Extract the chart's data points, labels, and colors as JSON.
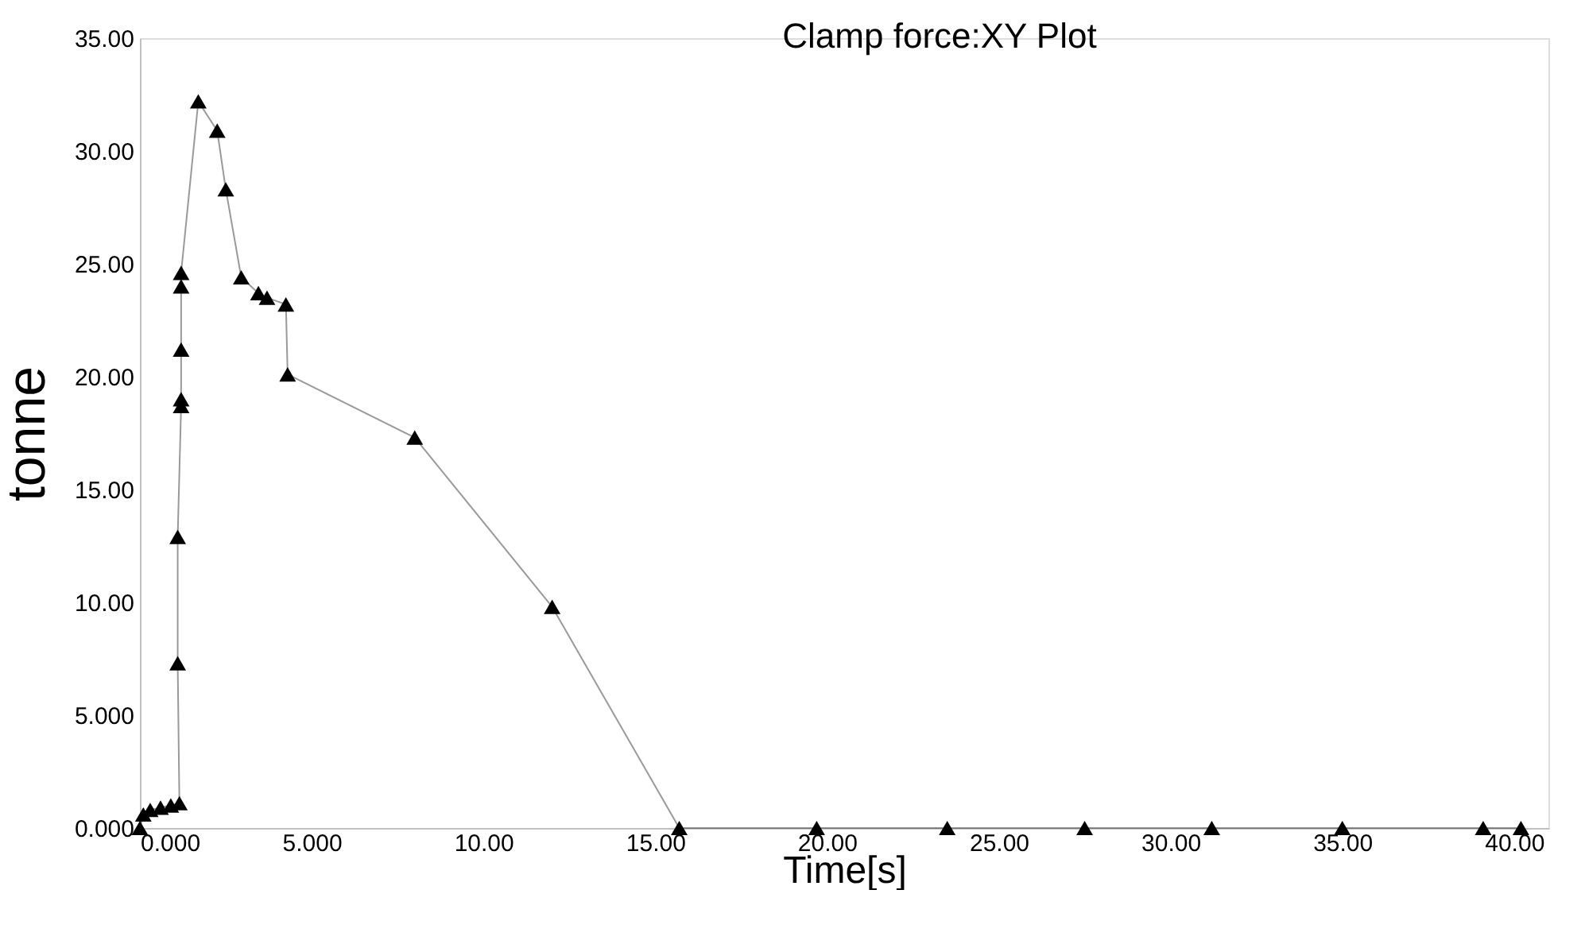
{
  "chart_data": {
    "type": "line",
    "title": "Clamp force:XY Plot",
    "xlabel": "Time[s]",
    "ylabel": "tonne",
    "series": [
      {
        "color": "#000000",
        "x": [
          0.0,
          0.1,
          0.3,
          0.6,
          0.9,
          1.15,
          1.1,
          1.1,
          1.2,
          1.2,
          1.2,
          1.2,
          1.2,
          1.7,
          2.25,
          2.5,
          2.95,
          3.45,
          3.7,
          4.25,
          4.3,
          8.0,
          12.0,
          15.7,
          19.7,
          23.5,
          27.5,
          31.2,
          35.0,
          39.1,
          40.2
        ],
        "values": [
          0.0,
          0.6,
          0.8,
          0.9,
          1.0,
          1.1,
          7.3,
          12.9,
          18.7,
          19.0,
          21.2,
          24.0,
          24.6,
          32.2,
          30.9,
          28.3,
          24.4,
          23.7,
          23.5,
          23.2,
          20.1,
          17.3,
          9.8,
          0.0,
          0.0,
          0.0,
          0.0,
          0.0,
          0.0,
          0.0,
          0.0
        ]
      }
    ],
    "marker": "triangle",
    "line_style": "solid",
    "grid": false,
    "xlim": [
      0,
      41
    ],
    "ylim": [
      0,
      35
    ],
    "xticks": [
      {
        "value": 0,
        "label": "0.000"
      },
      {
        "value": 5,
        "label": "5.000"
      },
      {
        "value": 10,
        "label": "10.00"
      },
      {
        "value": 15,
        "label": "15.00"
      },
      {
        "value": 20,
        "label": "20.00"
      },
      {
        "value": 25,
        "label": "25.00"
      },
      {
        "value": 30,
        "label": "30.00"
      },
      {
        "value": 35,
        "label": "35.00"
      },
      {
        "value": 40,
        "label": "40.00"
      }
    ],
    "yticks": [
      {
        "value": 0,
        "label": "0.000"
      },
      {
        "value": 5,
        "label": "5.000"
      },
      {
        "value": 10,
        "label": "10.00"
      },
      {
        "value": 15,
        "label": "15.00"
      },
      {
        "value": 20,
        "label": "20.00"
      },
      {
        "value": 25,
        "label": "25.00"
      },
      {
        "value": 30,
        "label": "30.00"
      },
      {
        "value": 35,
        "label": "35.00"
      }
    ]
  }
}
